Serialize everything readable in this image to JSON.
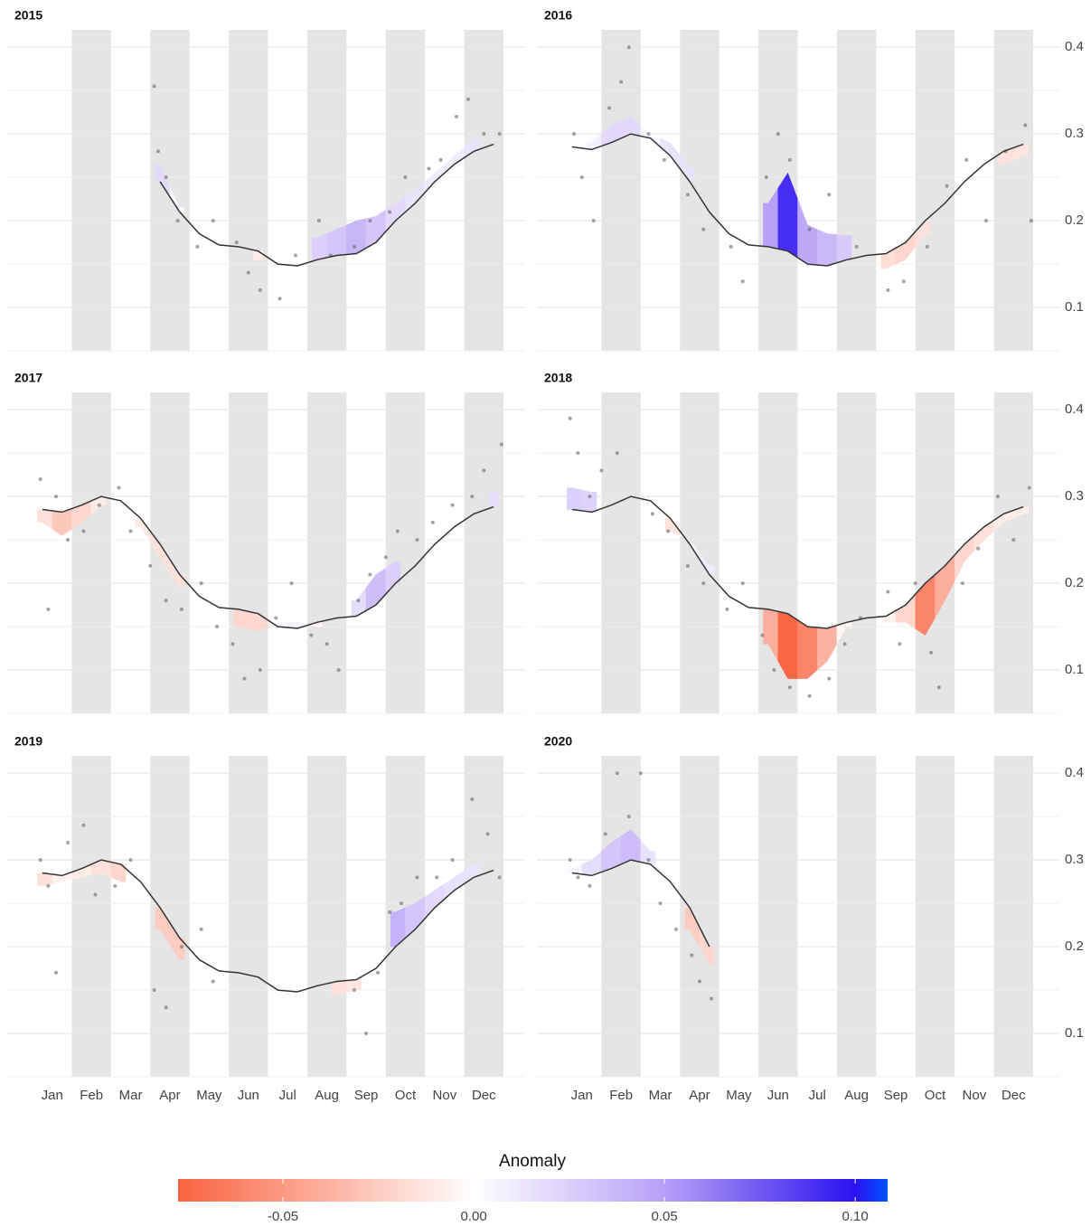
{
  "chart_data": [
    {
      "type": "line",
      "title": "2015",
      "xlim": [
        0,
        12
      ],
      "ylim": [
        0.05,
        0.42
      ],
      "yticks": [
        0.1,
        0.2,
        0.3,
        0.4
      ],
      "grid": true,
      "x": [
        0.25,
        0.75,
        1.25,
        1.75,
        2.25,
        2.75,
        3.25,
        3.75,
        4.25,
        4.75,
        5.25,
        5.75,
        6.25,
        6.75,
        7.25,
        7.75,
        8.25,
        8.75,
        9.25,
        9.75,
        10.25,
        10.75,
        11.25,
        11.75
      ],
      "baseline": [
        null,
        null,
        null,
        null,
        null,
        null,
        0.245,
        0.21,
        0.185,
        0.172,
        0.17,
        0.165,
        0.15,
        0.148,
        0.155,
        0.16,
        0.162,
        0.175,
        0.2,
        0.22,
        0.245,
        0.265,
        0.28,
        0.288
      ],
      "observed": [
        null,
        null,
        null,
        null,
        null,
        null,
        0.265,
        0.215,
        null,
        null,
        null,
        0.155,
        null,
        null,
        0.18,
        0.19,
        0.2,
        0.205,
        0.22,
        0.235,
        0.255,
        0.275,
        0.295,
        null
      ],
      "points": {
        "x": [
          3.1,
          3.2,
          3.4,
          3.7,
          4.2,
          4.6,
          5.2,
          5.5,
          5.8,
          6.3,
          6.7,
          7.3,
          7.6,
          8.2,
          8.6,
          9.1,
          9.5,
          10.1,
          10.4,
          10.8,
          11.1,
          11.5,
          11.9
        ],
        "y": [
          0.355,
          0.28,
          0.25,
          0.2,
          0.17,
          0.2,
          0.175,
          0.14,
          0.12,
          0.11,
          0.16,
          0.2,
          0.16,
          0.17,
          0.2,
          0.21,
          0.25,
          0.26,
          0.27,
          0.32,
          0.34,
          0.3,
          0.3
        ]
      }
    },
    {
      "type": "line",
      "title": "2016",
      "xlim": [
        0,
        12
      ],
      "ylim": [
        0.05,
        0.42
      ],
      "yticks": [
        0.1,
        0.2,
        0.3,
        0.4
      ],
      "grid": true,
      "x": [
        0.25,
        0.75,
        1.25,
        1.75,
        2.25,
        2.75,
        3.25,
        3.75,
        4.25,
        4.75,
        5.25,
        5.75,
        6.25,
        6.75,
        7.25,
        7.75,
        8.25,
        8.75,
        9.25,
        9.75,
        10.25,
        10.75,
        11.25,
        11.75
      ],
      "baseline": [
        0.285,
        0.282,
        0.29,
        0.3,
        0.295,
        0.275,
        0.245,
        0.21,
        0.185,
        0.172,
        0.17,
        0.165,
        0.15,
        0.148,
        0.155,
        0.16,
        0.162,
        0.175,
        0.2,
        0.22,
        0.245,
        0.265,
        0.28,
        0.288
      ],
      "observed": [
        null,
        0.29,
        0.31,
        0.32,
        0.3,
        0.29,
        0.26,
        null,
        null,
        null,
        0.22,
        0.255,
        0.195,
        0.185,
        0.183,
        null,
        0.145,
        0.155,
        0.185,
        null,
        null,
        null,
        0.265,
        0.275
      ],
      "points": {
        "x": [
          0.3,
          0.5,
          0.8,
          1.2,
          1.5,
          1.7,
          2.2,
          2.6,
          3.2,
          3.6,
          4.3,
          4.6,
          5.2,
          5.5,
          5.8,
          6.3,
          6.8,
          7.5,
          8.3,
          8.7,
          9.3,
          9.8,
          10.3,
          10.8,
          11.3,
          11.8,
          11.95
        ],
        "y": [
          0.3,
          0.25,
          0.2,
          0.33,
          0.36,
          0.4,
          0.3,
          0.27,
          0.23,
          0.19,
          0.17,
          0.13,
          0.25,
          0.3,
          0.27,
          0.19,
          0.23,
          0.17,
          0.12,
          0.13,
          0.17,
          0.24,
          0.27,
          0.2,
          0.28,
          0.31,
          0.2
        ]
      }
    },
    {
      "type": "line",
      "title": "2017",
      "xlim": [
        0,
        12
      ],
      "ylim": [
        0.05,
        0.42
      ],
      "yticks": [
        0.1,
        0.2,
        0.3,
        0.4
      ],
      "grid": true,
      "x": [
        0.25,
        0.75,
        1.25,
        1.75,
        2.25,
        2.75,
        3.25,
        3.75,
        4.25,
        4.75,
        5.25,
        5.75,
        6.25,
        6.75,
        7.25,
        7.75,
        8.25,
        8.75,
        9.25,
        9.75,
        10.25,
        10.75,
        11.25,
        11.75
      ],
      "baseline": [
        0.285,
        0.282,
        0.29,
        0.3,
        0.295,
        0.275,
        0.245,
        0.21,
        0.185,
        0.172,
        0.17,
        0.165,
        0.15,
        0.148,
        0.155,
        0.16,
        0.162,
        0.175,
        0.2,
        0.22,
        0.245,
        0.265,
        0.28,
        0.288
      ],
      "observed": [
        0.27,
        0.255,
        0.27,
        0.29,
        null,
        0.265,
        0.23,
        0.195,
        null,
        null,
        0.15,
        0.145,
        0.155,
        0.155,
        0.15,
        null,
        0.18,
        0.21,
        0.225,
        null,
        null,
        null,
        null,
        0.305
      ],
      "points": {
        "x": [
          0.2,
          0.4,
          0.6,
          0.9,
          1.3,
          1.7,
          2.2,
          2.5,
          3.0,
          3.4,
          3.8,
          4.3,
          4.7,
          5.1,
          5.4,
          5.8,
          6.2,
          6.6,
          7.1,
          7.5,
          7.8,
          8.3,
          8.6,
          9.0,
          9.3,
          9.8,
          10.2,
          10.7,
          11.2,
          11.5,
          11.95
        ],
        "y": [
          0.32,
          0.17,
          0.3,
          0.25,
          0.26,
          0.29,
          0.31,
          0.26,
          0.22,
          0.18,
          0.17,
          0.2,
          0.15,
          0.13,
          0.09,
          0.1,
          0.16,
          0.2,
          0.14,
          0.13,
          0.1,
          0.18,
          0.21,
          0.23,
          0.26,
          0.25,
          0.27,
          0.29,
          0.3,
          0.33,
          0.36
        ]
      }
    },
    {
      "type": "line",
      "title": "2018",
      "xlim": [
        0,
        12
      ],
      "ylim": [
        0.05,
        0.42
      ],
      "yticks": [
        0.1,
        0.2,
        0.3,
        0.4
      ],
      "grid": true,
      "x": [
        0.25,
        0.75,
        1.25,
        1.75,
        2.25,
        2.75,
        3.25,
        3.75,
        4.25,
        4.75,
        5.25,
        5.75,
        6.25,
        6.75,
        7.25,
        7.75,
        8.25,
        8.75,
        9.25,
        9.75,
        10.25,
        10.75,
        11.25,
        11.75
      ],
      "baseline": [
        0.285,
        0.282,
        0.29,
        0.3,
        0.295,
        0.275,
        0.245,
        0.21,
        0.185,
        0.172,
        0.17,
        0.165,
        0.15,
        0.148,
        0.155,
        0.16,
        0.162,
        0.175,
        0.2,
        0.22,
        0.245,
        0.265,
        0.28,
        0.288
      ],
      "observed": [
        0.31,
        0.305,
        null,
        null,
        null,
        0.26,
        0.25,
        0.22,
        null,
        null,
        0.13,
        0.09,
        0.09,
        0.11,
        0.15,
        null,
        0.155,
        0.155,
        0.14,
        0.18,
        0.225,
        0.25,
        0.27,
        0.28
      ],
      "points": {
        "x": [
          0.2,
          0.4,
          0.7,
          1.0,
          1.4,
          2.3,
          2.7,
          3.2,
          3.6,
          4.2,
          4.6,
          5.1,
          5.4,
          5.8,
          6.3,
          6.8,
          7.2,
          7.6,
          8.3,
          8.6,
          9.0,
          9.4,
          9.6,
          10.2,
          10.6,
          11.1,
          11.5,
          11.9
        ],
        "y": [
          0.39,
          0.35,
          0.3,
          0.33,
          0.35,
          0.28,
          0.26,
          0.22,
          0.2,
          0.17,
          0.2,
          0.14,
          0.1,
          0.08,
          0.07,
          0.09,
          0.13,
          0.16,
          0.19,
          0.13,
          0.2,
          0.12,
          0.08,
          0.2,
          0.24,
          0.3,
          0.25,
          0.31
        ]
      }
    },
    {
      "type": "line",
      "title": "2019",
      "xlim": [
        0,
        12
      ],
      "ylim": [
        0.05,
        0.42
      ],
      "yticks": [
        0.1,
        0.2,
        0.3,
        0.4
      ],
      "grid": true,
      "categories": [
        "Jan",
        "Feb",
        "Mar",
        "Apr",
        "May",
        "Jun",
        "Jul",
        "Aug",
        "Sep",
        "Oct",
        "Nov",
        "Dec"
      ],
      "x": [
        0.25,
        0.75,
        1.25,
        1.75,
        2.25,
        2.75,
        3.25,
        3.75,
        4.25,
        4.75,
        5.25,
        5.75,
        6.25,
        6.75,
        7.25,
        7.75,
        8.25,
        8.75,
        9.25,
        9.75,
        10.25,
        10.75,
        11.25,
        11.75
      ],
      "baseline": [
        0.285,
        0.282,
        0.29,
        0.3,
        0.295,
        0.275,
        0.245,
        0.21,
        0.185,
        0.172,
        0.17,
        0.165,
        0.15,
        0.148,
        0.155,
        0.16,
        0.162,
        0.175,
        0.2,
        0.22,
        0.245,
        0.265,
        0.28,
        0.288
      ],
      "observed": [
        0.27,
        0.275,
        0.28,
        0.285,
        0.275,
        null,
        0.22,
        0.185,
        null,
        null,
        null,
        null,
        null,
        null,
        null,
        0.145,
        0.15,
        null,
        0.24,
        0.25,
        0.265,
        0.28,
        0.295,
        null
      ],
      "points": {
        "x": [
          0.2,
          0.4,
          0.6,
          0.9,
          1.3,
          1.6,
          2.1,
          2.5,
          3.1,
          3.4,
          3.8,
          4.3,
          4.6,
          8.2,
          8.5,
          8.8,
          9.1,
          9.4,
          9.8,
          10.3,
          10.7,
          11.2,
          11.6,
          11.9
        ],
        "y": [
          0.3,
          0.27,
          0.17,
          0.32,
          0.34,
          0.26,
          0.27,
          0.3,
          0.15,
          0.13,
          0.2,
          0.22,
          0.16,
          0.15,
          0.1,
          0.17,
          0.24,
          0.25,
          0.28,
          0.28,
          0.3,
          0.37,
          0.33,
          0.28
        ]
      }
    },
    {
      "type": "line",
      "title": "2020",
      "xlim": [
        0,
        12
      ],
      "ylim": [
        0.05,
        0.42
      ],
      "yticks": [
        0.1,
        0.2,
        0.3,
        0.4
      ],
      "grid": true,
      "categories": [
        "Jan",
        "Feb",
        "Mar",
        "Apr",
        "May",
        "Jun",
        "Jul",
        "Aug",
        "Sep",
        "Oct",
        "Nov",
        "Dec"
      ],
      "x": [
        0.25,
        0.75,
        1.25,
        1.75,
        2.25,
        2.75,
        3.25,
        3.75
      ],
      "baseline": [
        0.285,
        0.282,
        0.29,
        0.3,
        0.295,
        0.275,
        0.245,
        0.2
      ],
      "observed": [
        0.29,
        0.3,
        0.32,
        0.335,
        0.31,
        null,
        0.22,
        0.18
      ],
      "points": {
        "x": [
          0.2,
          0.4,
          0.7,
          1.1,
          1.4,
          1.7,
          2.0,
          2.2,
          2.5,
          2.9,
          3.3,
          3.5,
          3.8
        ],
        "y": [
          0.3,
          0.28,
          0.27,
          0.33,
          0.4,
          0.35,
          0.4,
          0.3,
          0.25,
          0.22,
          0.19,
          0.16,
          0.14
        ]
      }
    }
  ],
  "colorbar": {
    "title": "Anomaly",
    "lim": [
      -0.0775,
      0.1085
    ],
    "ticks": [
      {
        "value": -0.05,
        "label": "-0.05"
      },
      {
        "value": 0,
        "label": "0.00"
      },
      {
        "value": 0.05,
        "label": "0.05"
      },
      {
        "value": 0.1,
        "label": "0.10"
      }
    ],
    "stops": [
      [
        -0.0775,
        "#f9623f"
      ],
      [
        0,
        "#ffffff"
      ],
      [
        0.05,
        "#b7a0f6"
      ],
      [
        0.1,
        "#2b12f2"
      ],
      [
        0.1085,
        "#0052ff"
      ]
    ]
  }
}
